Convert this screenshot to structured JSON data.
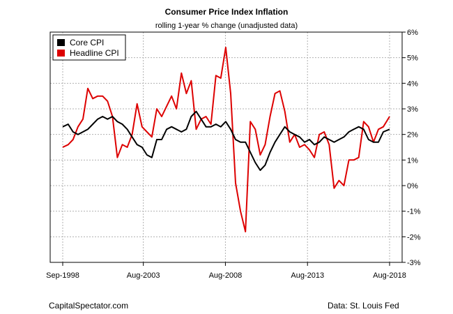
{
  "chart_data": {
    "type": "line",
    "title": "Consumer Price Index Inflation",
    "subtitle": "rolling 1-year % change (unadjusted data)",
    "xlabel": "",
    "ylabel": "",
    "x_range": [
      1998.67,
      2018.58
    ],
    "ylim": [
      -3,
      6
    ],
    "y_ticks": [
      6,
      5,
      4,
      3,
      2,
      1,
      0,
      -1,
      -2,
      -3
    ],
    "y_tick_labels": [
      "6%",
      "5%",
      "4%",
      "3%",
      "2%",
      "1%",
      "0%",
      "-1%",
      "-2%",
      "-3%"
    ],
    "x_ticks": [
      1998.67,
      2003.58,
      2008.58,
      2013.58,
      2018.58
    ],
    "x_tick_labels": [
      "Sep-1998",
      "Aug-2003",
      "Aug-2008",
      "Aug-2013",
      "Aug-2018"
    ],
    "grid": true,
    "legend_position": "top-left",
    "legend": [
      "Core CPI",
      "Headline CPI"
    ],
    "series": [
      {
        "name": "Core CPI",
        "color": "#000000",
        "x": [
          1998.67,
          1999.0,
          1999.3,
          1999.6,
          1999.9,
          2000.2,
          2000.5,
          2000.8,
          2001.1,
          2001.4,
          2001.7,
          2002.0,
          2002.3,
          2002.6,
          2002.9,
          2003.2,
          2003.5,
          2003.8,
          2004.1,
          2004.4,
          2004.7,
          2005.0,
          2005.3,
          2005.6,
          2005.9,
          2006.2,
          2006.5,
          2006.8,
          2007.1,
          2007.4,
          2007.7,
          2008.0,
          2008.3,
          2008.6,
          2008.9,
          2009.2,
          2009.5,
          2009.8,
          2010.1,
          2010.4,
          2010.7,
          2011.0,
          2011.3,
          2011.6,
          2011.9,
          2012.2,
          2012.5,
          2012.8,
          2013.1,
          2013.4,
          2013.7,
          2014.0,
          2014.3,
          2014.6,
          2014.9,
          2015.2,
          2015.5,
          2015.8,
          2016.1,
          2016.4,
          2016.7,
          2017.0,
          2017.3,
          2017.6,
          2017.9,
          2018.2,
          2018.58
        ],
        "values": [
          2.3,
          2.4,
          2.1,
          2.0,
          2.1,
          2.2,
          2.4,
          2.6,
          2.7,
          2.6,
          2.7,
          2.5,
          2.4,
          2.2,
          1.9,
          1.6,
          1.5,
          1.2,
          1.1,
          1.8,
          1.8,
          2.2,
          2.3,
          2.2,
          2.1,
          2.2,
          2.7,
          2.9,
          2.6,
          2.3,
          2.3,
          2.4,
          2.3,
          2.5,
          2.2,
          1.8,
          1.7,
          1.7,
          1.3,
          0.9,
          0.6,
          0.8,
          1.3,
          1.7,
          2.0,
          2.3,
          2.1,
          2.0,
          1.9,
          1.7,
          1.8,
          1.6,
          1.7,
          1.9,
          1.8,
          1.7,
          1.8,
          1.9,
          2.1,
          2.2,
          2.3,
          2.2,
          1.8,
          1.7,
          1.7,
          2.1,
          2.2
        ]
      },
      {
        "name": "Headline CPI",
        "color": "#dd0000",
        "x": [
          1998.67,
          1999.0,
          1999.3,
          1999.6,
          1999.9,
          2000.2,
          2000.5,
          2000.8,
          2001.1,
          2001.4,
          2001.7,
          2002.0,
          2002.3,
          2002.6,
          2002.9,
          2003.2,
          2003.5,
          2003.8,
          2004.1,
          2004.4,
          2004.7,
          2005.0,
          2005.3,
          2005.6,
          2005.9,
          2006.2,
          2006.5,
          2006.8,
          2007.1,
          2007.4,
          2007.7,
          2008.0,
          2008.3,
          2008.6,
          2008.9,
          2009.2,
          2009.5,
          2009.8,
          2010.1,
          2010.4,
          2010.7,
          2011.0,
          2011.3,
          2011.6,
          2011.9,
          2012.2,
          2012.5,
          2012.8,
          2013.1,
          2013.4,
          2013.7,
          2014.0,
          2014.3,
          2014.6,
          2014.9,
          2015.2,
          2015.5,
          2015.8,
          2016.1,
          2016.4,
          2016.7,
          2017.0,
          2017.3,
          2017.6,
          2017.9,
          2018.2,
          2018.58
        ],
        "values": [
          1.5,
          1.6,
          1.8,
          2.3,
          2.6,
          3.8,
          3.4,
          3.5,
          3.5,
          3.3,
          2.7,
          1.1,
          1.6,
          1.5,
          2.0,
          3.2,
          2.3,
          2.1,
          1.9,
          3.0,
          2.7,
          3.1,
          3.5,
          3.0,
          4.4,
          3.6,
          4.1,
          2.2,
          2.6,
          2.7,
          2.4,
          4.3,
          4.2,
          5.4,
          3.6,
          0.1,
          -1.0,
          -1.8,
          2.5,
          2.2,
          1.2,
          1.6,
          2.7,
          3.6,
          3.7,
          2.9,
          1.7,
          2.0,
          1.5,
          1.6,
          1.4,
          1.1,
          2.0,
          2.1,
          1.6,
          -0.1,
          0.2,
          0.0,
          1.0,
          1.0,
          1.1,
          2.5,
          2.3,
          1.7,
          2.2,
          2.3,
          2.7
        ]
      }
    ]
  },
  "footer": {
    "left": "CapitalSpectator.com",
    "right": "Data: St. Louis Fed"
  }
}
